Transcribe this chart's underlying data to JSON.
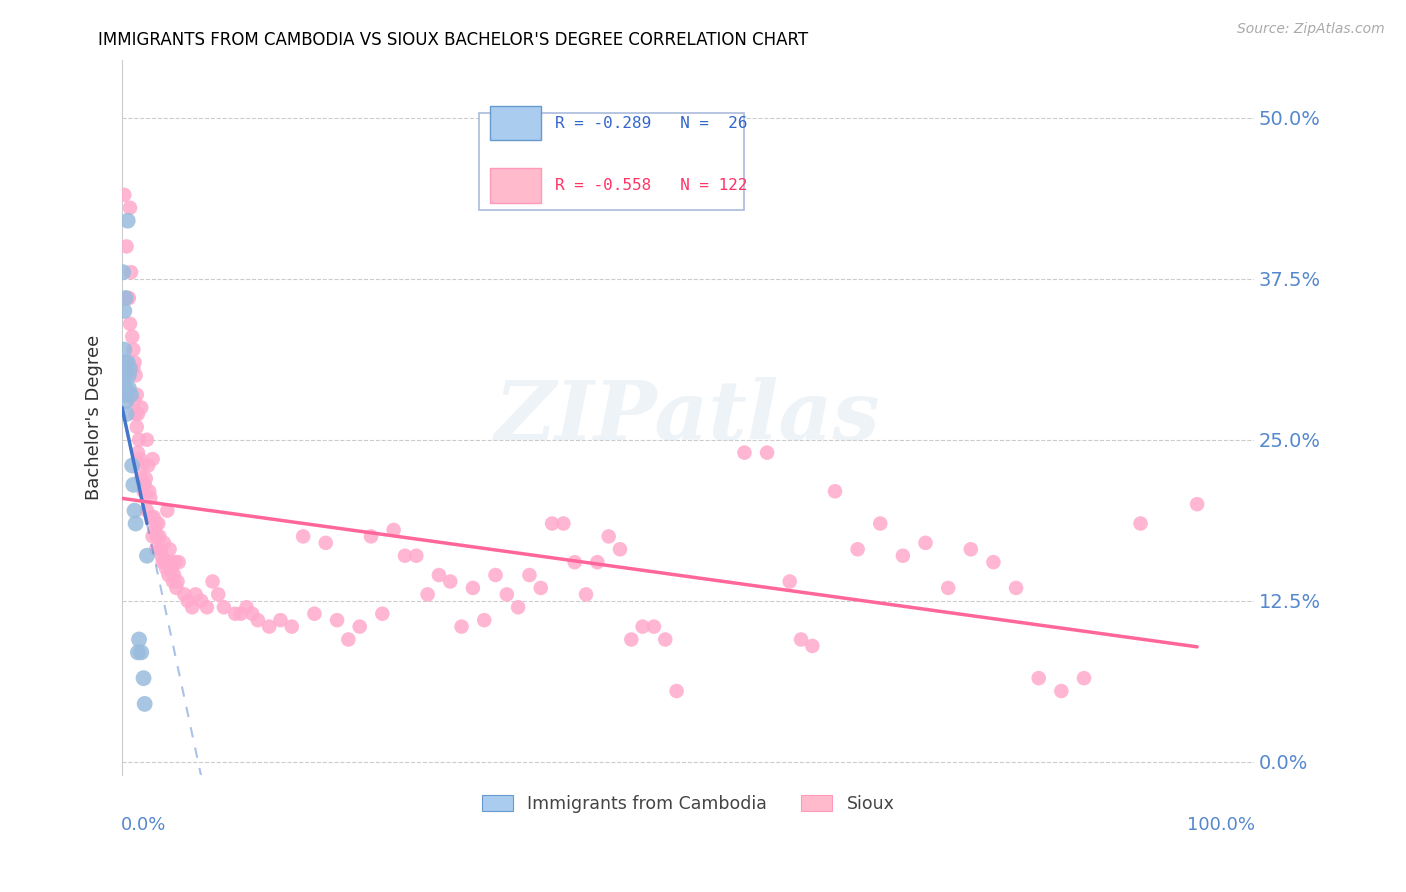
{
  "title": "IMMIGRANTS FROM CAMBODIA VS SIOUX BACHELOR'S DEGREE CORRELATION CHART",
  "source": "Source: ZipAtlas.com",
  "ylabel": "Bachelor's Degree",
  "ytick_labels": [
    "0.0%",
    "12.5%",
    "25.0%",
    "37.5%",
    "50.0%"
  ],
  "ytick_values": [
    0.0,
    0.125,
    0.25,
    0.375,
    0.5
  ],
  "xlim": [
    0.0,
    1.0
  ],
  "ylim": [
    -0.01,
    0.545
  ],
  "blue_color": "#99BBDD",
  "pink_color": "#FFAACC",
  "blue_dark": "#4477CC",
  "pink_dark": "#FF6699",
  "blue_legend_fill": "#AACCEE",
  "blue_legend_edge": "#6699CC",
  "pink_legend_fill": "#FFBBCC",
  "pink_legend_edge": "#FF99BB",
  "legend_text_blue": "#3366CC",
  "legend_text_pink": "#FF3366",
  "watermark": "ZIPatlas",
  "cambodia_scatter": [
    [
      0.001,
      0.38
    ],
    [
      0.002,
      0.35
    ],
    [
      0.002,
      0.32
    ],
    [
      0.002,
      0.3
    ],
    [
      0.003,
      0.36
    ],
    [
      0.003,
      0.31
    ],
    [
      0.003,
      0.285
    ],
    [
      0.003,
      0.29
    ],
    [
      0.004,
      0.27
    ],
    [
      0.004,
      0.28
    ],
    [
      0.005,
      0.42
    ],
    [
      0.005,
      0.31
    ],
    [
      0.006,
      0.29
    ],
    [
      0.006,
      0.3
    ],
    [
      0.007,
      0.305
    ],
    [
      0.008,
      0.285
    ],
    [
      0.009,
      0.23
    ],
    [
      0.01,
      0.215
    ],
    [
      0.011,
      0.195
    ],
    [
      0.012,
      0.185
    ],
    [
      0.014,
      0.085
    ],
    [
      0.015,
      0.095
    ],
    [
      0.017,
      0.085
    ],
    [
      0.019,
      0.065
    ],
    [
      0.02,
      0.045
    ],
    [
      0.022,
      0.16
    ]
  ],
  "sioux_scatter": [
    [
      0.002,
      0.44
    ],
    [
      0.004,
      0.4
    ],
    [
      0.005,
      0.36
    ],
    [
      0.006,
      0.36
    ],
    [
      0.007,
      0.43
    ],
    [
      0.007,
      0.34
    ],
    [
      0.008,
      0.38
    ],
    [
      0.009,
      0.33
    ],
    [
      0.01,
      0.32
    ],
    [
      0.01,
      0.305
    ],
    [
      0.011,
      0.31
    ],
    [
      0.011,
      0.28
    ],
    [
      0.012,
      0.3
    ],
    [
      0.012,
      0.27
    ],
    [
      0.013,
      0.285
    ],
    [
      0.013,
      0.26
    ],
    [
      0.014,
      0.27
    ],
    [
      0.014,
      0.24
    ],
    [
      0.015,
      0.25
    ],
    [
      0.016,
      0.235
    ],
    [
      0.017,
      0.275
    ],
    [
      0.017,
      0.22
    ],
    [
      0.018,
      0.23
    ],
    [
      0.019,
      0.21
    ],
    [
      0.02,
      0.215
    ],
    [
      0.021,
      0.22
    ],
    [
      0.022,
      0.25
    ],
    [
      0.022,
      0.195
    ],
    [
      0.023,
      0.23
    ],
    [
      0.024,
      0.21
    ],
    [
      0.025,
      0.205
    ],
    [
      0.026,
      0.19
    ],
    [
      0.027,
      0.235
    ],
    [
      0.027,
      0.175
    ],
    [
      0.028,
      0.19
    ],
    [
      0.029,
      0.18
    ],
    [
      0.03,
      0.185
    ],
    [
      0.03,
      0.165
    ],
    [
      0.031,
      0.175
    ],
    [
      0.032,
      0.185
    ],
    [
      0.033,
      0.175
    ],
    [
      0.034,
      0.165
    ],
    [
      0.035,
      0.16
    ],
    [
      0.036,
      0.155
    ],
    [
      0.037,
      0.17
    ],
    [
      0.038,
      0.155
    ],
    [
      0.039,
      0.15
    ],
    [
      0.04,
      0.195
    ],
    [
      0.041,
      0.145
    ],
    [
      0.042,
      0.165
    ],
    [
      0.043,
      0.155
    ],
    [
      0.044,
      0.15
    ],
    [
      0.045,
      0.14
    ],
    [
      0.046,
      0.145
    ],
    [
      0.047,
      0.155
    ],
    [
      0.048,
      0.135
    ],
    [
      0.049,
      0.14
    ],
    [
      0.05,
      0.155
    ],
    [
      0.055,
      0.13
    ],
    [
      0.058,
      0.125
    ],
    [
      0.062,
      0.12
    ],
    [
      0.065,
      0.13
    ],
    [
      0.07,
      0.125
    ],
    [
      0.075,
      0.12
    ],
    [
      0.08,
      0.14
    ],
    [
      0.085,
      0.13
    ],
    [
      0.09,
      0.12
    ],
    [
      0.1,
      0.115
    ],
    [
      0.105,
      0.115
    ],
    [
      0.11,
      0.12
    ],
    [
      0.115,
      0.115
    ],
    [
      0.12,
      0.11
    ],
    [
      0.13,
      0.105
    ],
    [
      0.14,
      0.11
    ],
    [
      0.15,
      0.105
    ],
    [
      0.16,
      0.175
    ],
    [
      0.17,
      0.115
    ],
    [
      0.18,
      0.17
    ],
    [
      0.19,
      0.11
    ],
    [
      0.2,
      0.095
    ],
    [
      0.21,
      0.105
    ],
    [
      0.22,
      0.175
    ],
    [
      0.23,
      0.115
    ],
    [
      0.24,
      0.18
    ],
    [
      0.25,
      0.16
    ],
    [
      0.26,
      0.16
    ],
    [
      0.27,
      0.13
    ],
    [
      0.28,
      0.145
    ],
    [
      0.29,
      0.14
    ],
    [
      0.3,
      0.105
    ],
    [
      0.31,
      0.135
    ],
    [
      0.32,
      0.11
    ],
    [
      0.33,
      0.145
    ],
    [
      0.34,
      0.13
    ],
    [
      0.35,
      0.12
    ],
    [
      0.36,
      0.145
    ],
    [
      0.37,
      0.135
    ],
    [
      0.38,
      0.185
    ],
    [
      0.39,
      0.185
    ],
    [
      0.4,
      0.155
    ],
    [
      0.41,
      0.13
    ],
    [
      0.42,
      0.155
    ],
    [
      0.43,
      0.175
    ],
    [
      0.44,
      0.165
    ],
    [
      0.45,
      0.095
    ],
    [
      0.46,
      0.105
    ],
    [
      0.47,
      0.105
    ],
    [
      0.48,
      0.095
    ],
    [
      0.49,
      0.055
    ],
    [
      0.55,
      0.24
    ],
    [
      0.57,
      0.24
    ],
    [
      0.59,
      0.14
    ],
    [
      0.6,
      0.095
    ],
    [
      0.61,
      0.09
    ],
    [
      0.63,
      0.21
    ],
    [
      0.65,
      0.165
    ],
    [
      0.67,
      0.185
    ],
    [
      0.69,
      0.16
    ],
    [
      0.71,
      0.17
    ],
    [
      0.73,
      0.135
    ],
    [
      0.75,
      0.165
    ],
    [
      0.77,
      0.155
    ],
    [
      0.79,
      0.135
    ],
    [
      0.81,
      0.065
    ],
    [
      0.83,
      0.055
    ],
    [
      0.85,
      0.065
    ],
    [
      0.9,
      0.185
    ],
    [
      0.95,
      0.2
    ]
  ]
}
